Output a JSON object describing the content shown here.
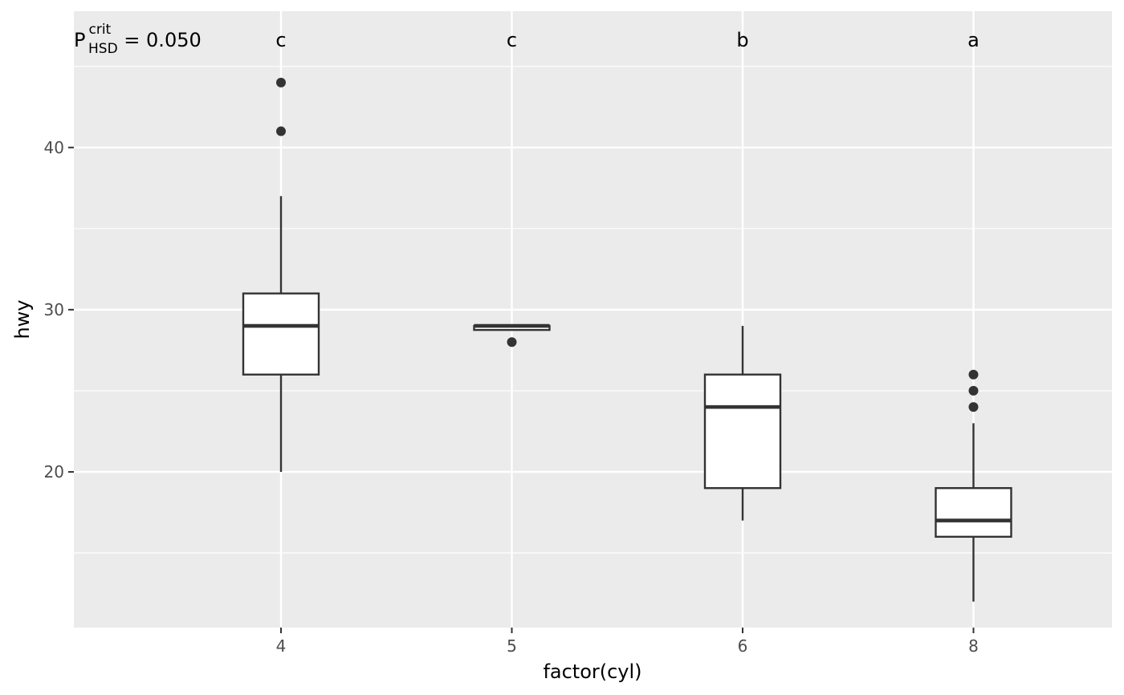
{
  "chart_data": {
    "type": "box",
    "xlabel": "factor(cyl)",
    "ylabel": "hwy",
    "categories": [
      "4",
      "5",
      "6",
      "8"
    ],
    "ylim": [
      10.4,
      48.4
    ],
    "y_major_ticks": [
      20,
      30,
      40
    ],
    "y_minor_ticks": [
      15,
      25,
      35,
      45
    ],
    "grid": true,
    "background": "#ebebeb",
    "gridline_color": "#ffffff",
    "box_fill": "#ffffff",
    "box_stroke": "#333333",
    "boxes": [
      {
        "category": "4",
        "whisker_low": 20,
        "q1": 26,
        "median": 29,
        "q3": 31,
        "whisker_high": 37,
        "outliers": [
          41,
          44
        ],
        "letter": "c"
      },
      {
        "category": "5",
        "whisker_low": 28.75,
        "q1": 28.75,
        "median": 29,
        "q3": 29,
        "whisker_high": 29,
        "outliers": [
          28
        ],
        "letter": "c"
      },
      {
        "category": "6",
        "whisker_low": 17,
        "q1": 19,
        "median": 24,
        "q3": 26,
        "whisker_high": 29,
        "outliers": [],
        "letter": "b"
      },
      {
        "category": "8",
        "whisker_low": 12,
        "q1": 16,
        "median": 17,
        "q3": 19,
        "whisker_high": 23,
        "outliers": [
          24,
          25,
          26
        ],
        "letter": "a"
      }
    ],
    "annotation": {
      "base": "P",
      "superscript": "crit",
      "subscript": "HSD",
      "value_text": " = 0.050"
    }
  }
}
